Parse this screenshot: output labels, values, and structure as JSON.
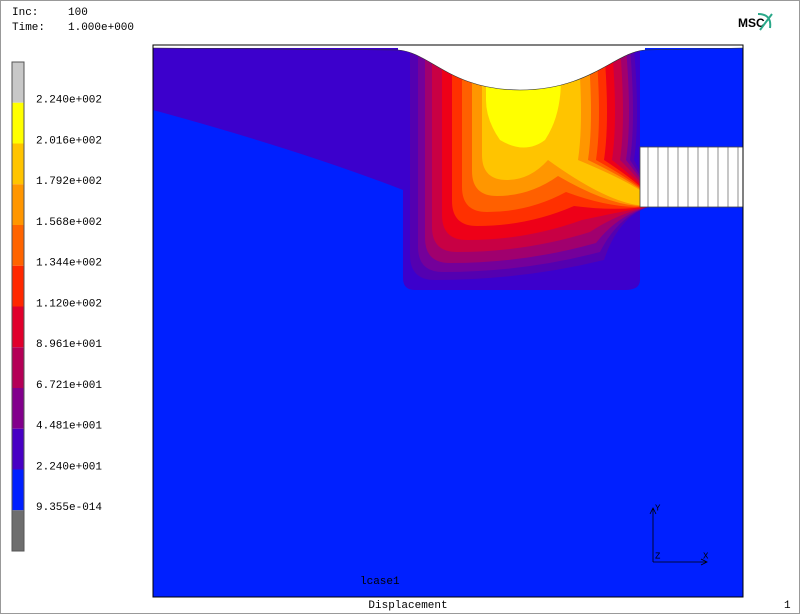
{
  "header": {
    "inc_label": "Inc:",
    "inc_value": "100",
    "time_label": "Time:",
    "time_value": "1.000e+000"
  },
  "logo": "MSC",
  "legend": {
    "labels": [
      "2.240e+002",
      "2.016e+002",
      "1.792e+002",
      "1.568e+002",
      "1.344e+002",
      "1.120e+002",
      "8.961e+001",
      "6.721e+001",
      "4.481e+001",
      "2.240e+001",
      "9.355e-014"
    ]
  },
  "triad": {
    "y": "Y",
    "x": "X",
    "z": "Z"
  },
  "footer": {
    "lcase": "lcase1",
    "title": "Displacement",
    "page": "1"
  }
}
